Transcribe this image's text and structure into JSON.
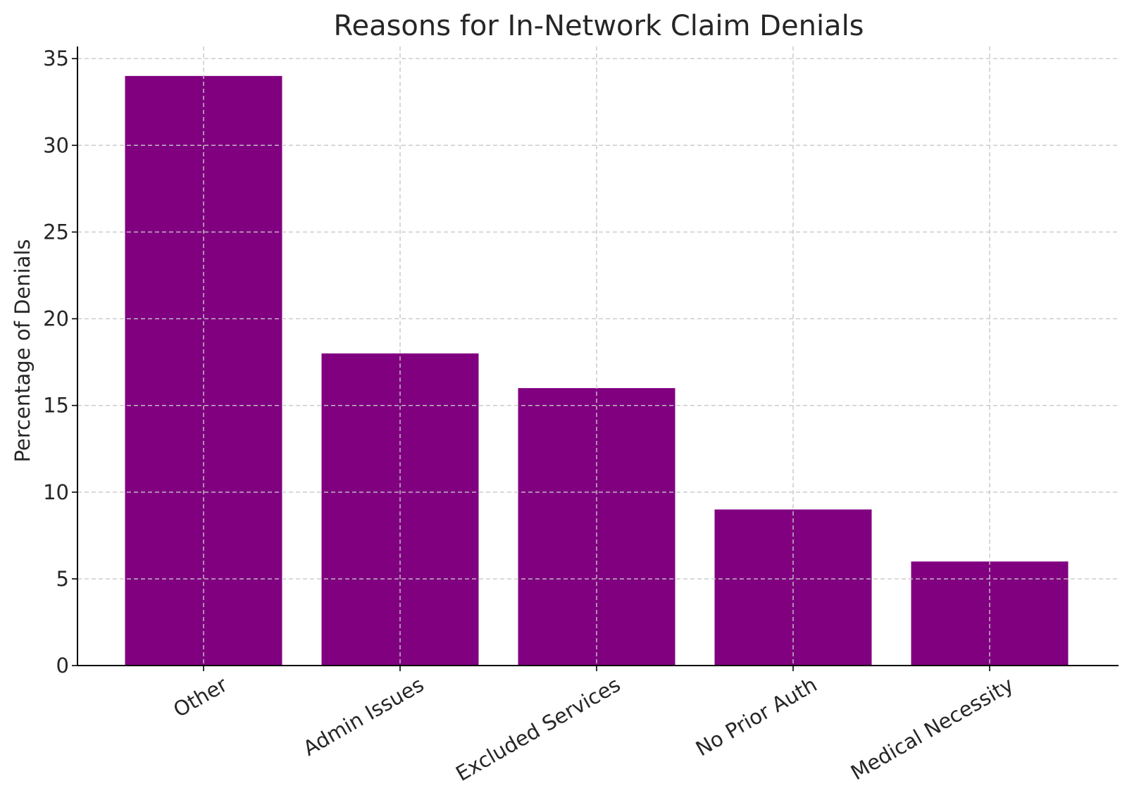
{
  "chart_data": {
    "type": "bar",
    "title": "Reasons for In-Network Claim Denials",
    "xlabel": "",
    "ylabel": "Percentage of Denials",
    "categories": [
      "Other",
      "Admin Issues",
      "Excluded Services",
      "No Prior Auth",
      "Medical Necessity"
    ],
    "values": [
      34,
      18,
      16,
      9,
      6
    ],
    "ylim": [
      0,
      35.7
    ],
    "yticks": [
      0,
      5,
      10,
      15,
      20,
      25,
      30,
      35
    ],
    "grid": true,
    "bar_color": "#800080",
    "x_tick_rotation_deg": -30
  }
}
